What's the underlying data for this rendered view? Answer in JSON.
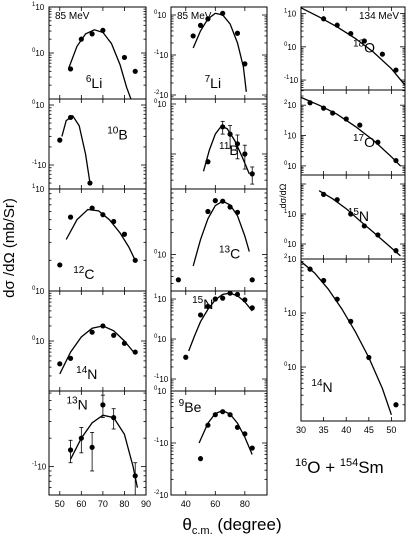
{
  "figure": {
    "ylabel_main": "dσ /dΩ  (mb/Sr)",
    "ylabel_right": "dσ/dΩ",
    "xlabel": "θc.m. (degree)",
    "xlabel_base": "θ",
    "xlabel_sub": "c.m.",
    "xlabel_tail": " (degree)",
    "reaction": "16O + 154Sm",
    "reaction_parts": [
      "16",
      "O + ",
      "154",
      "Sm"
    ]
  },
  "chart_data": [
    {
      "type": "scatter",
      "panel": "6Li",
      "label_sup": "6",
      "label_el": "Li",
      "energy": "85 MeV",
      "col": 0,
      "row": 0,
      "xlim": [
        45,
        90
      ],
      "ylim_log10": [
        -1,
        1
      ],
      "ytick_labels": [
        "10¹",
        "10⁰"
      ],
      "ytick_values": [
        10,
        1
      ],
      "points": [
        {
          "x": 55,
          "y": 0.45
        },
        {
          "x": 60,
          "y": 2.0
        },
        {
          "x": 65,
          "y": 2.6
        },
        {
          "x": 70,
          "y": 3.1
        },
        {
          "x": 80,
          "y": 0.8
        },
        {
          "x": 85,
          "y": 0.4
        }
      ],
      "curve": [
        {
          "x": 54,
          "y": 0.45
        },
        {
          "x": 58,
          "y": 1.4
        },
        {
          "x": 62,
          "y": 2.6
        },
        {
          "x": 66,
          "y": 3.2
        },
        {
          "x": 70,
          "y": 2.8
        },
        {
          "x": 74,
          "y": 1.6
        },
        {
          "x": 78,
          "y": 0.55
        },
        {
          "x": 81,
          "y": 0.18
        },
        {
          "x": 83,
          "y": 0.1
        }
      ]
    },
    {
      "type": "scatter",
      "panel": "10B",
      "label_sup": "10",
      "label_el": "B",
      "energy": "",
      "col": 0,
      "row": 1,
      "xlim": [
        45,
        90
      ],
      "ylim_log10": [
        -1.4,
        0.1
      ],
      "ytick_labels": [
        "10⁰",
        "10⁻¹"
      ],
      "ytick_values": [
        1,
        0.1
      ],
      "points": [
        {
          "x": 50,
          "y": 0.26
        },
        {
          "x": 55,
          "y": 0.62
        },
        {
          "x": 64,
          "y": 0.05
        }
      ],
      "curve": [
        {
          "x": 51,
          "y": 0.3
        },
        {
          "x": 53,
          "y": 0.55
        },
        {
          "x": 56,
          "y": 0.66
        },
        {
          "x": 59,
          "y": 0.45
        },
        {
          "x": 62,
          "y": 0.15
        },
        {
          "x": 64,
          "y": 0.05
        }
      ]
    },
    {
      "type": "scatter",
      "panel": "12C",
      "label_sup": "12",
      "label_el": "C",
      "energy": "",
      "col": 0,
      "row": 2,
      "xlim": [
        45,
        90
      ],
      "ylim_log10": [
        0,
        1
      ],
      "ytick_labels": [
        "10¹",
        "10⁰"
      ],
      "ytick_values": [
        10,
        1
      ],
      "points": [
        {
          "x": 50,
          "y": 1.8
        },
        {
          "x": 55,
          "y": 5.3
        },
        {
          "x": 65,
          "y": 6.5
        },
        {
          "x": 70,
          "y": 5.6
        },
        {
          "x": 75,
          "y": 4.8
        },
        {
          "x": 80,
          "y": 3.6
        },
        {
          "x": 85,
          "y": 2.0
        }
      ],
      "curve": [
        {
          "x": 53,
          "y": 3.2
        },
        {
          "x": 58,
          "y": 5.0
        },
        {
          "x": 63,
          "y": 6.3
        },
        {
          "x": 68,
          "y": 6.1
        },
        {
          "x": 73,
          "y": 5.0
        },
        {
          "x": 78,
          "y": 3.7
        },
        {
          "x": 82,
          "y": 2.7
        },
        {
          "x": 85,
          "y": 2.0
        }
      ]
    },
    {
      "type": "scatter",
      "panel": "14N",
      "label_sup": "14",
      "label_el": "N",
      "energy": "",
      "col": 0,
      "row": 3,
      "xlim": [
        45,
        90
      ],
      "ylim_log10": [
        -1,
        1
      ],
      "ytick_labels": [
        "10⁰"
      ],
      "ytick_values": [
        1
      ],
      "points": [
        {
          "x": 50,
          "y": 0.35
        },
        {
          "x": 55,
          "y": 0.45
        },
        {
          "x": 65,
          "y": 1.5
        },
        {
          "x": 70,
          "y": 2.0
        },
        {
          "x": 75,
          "y": 1.3
        },
        {
          "x": 80,
          "y": 0.9
        },
        {
          "x": 85,
          "y": 0.6
        }
      ],
      "curve": [
        {
          "x": 50,
          "y": 0.22
        },
        {
          "x": 55,
          "y": 0.6
        },
        {
          "x": 60,
          "y": 1.2
        },
        {
          "x": 65,
          "y": 1.8
        },
        {
          "x": 70,
          "y": 2.0
        },
        {
          "x": 75,
          "y": 1.6
        },
        {
          "x": 80,
          "y": 1.0
        },
        {
          "x": 85,
          "y": 0.55
        }
      ]
    },
    {
      "type": "scatter",
      "panel": "13N",
      "label_sup": "13",
      "label_el": "N",
      "energy": "",
      "col": 0,
      "row": 4,
      "xlim": [
        45,
        90
      ],
      "ylim_log10": [
        -1.3,
        -0.2
      ],
      "ytick_labels": [
        "10⁻¹"
      ],
      "ytick_values": [
        0.1
      ],
      "points": [
        {
          "x": 55,
          "y": 0.15,
          "err": 0.04
        },
        {
          "x": 60,
          "y": 0.2,
          "err": 0.06
        },
        {
          "x": 65,
          "y": 0.16,
          "err": 0.07
        },
        {
          "x": 70,
          "y": 0.45,
          "err": 0.12
        },
        {
          "x": 75,
          "y": 0.33,
          "err": 0.08
        },
        {
          "x": 85,
          "y": 0.08,
          "err": 0.03
        }
      ],
      "curve": [
        {
          "x": 55,
          "y": 0.12
        },
        {
          "x": 60,
          "y": 0.2
        },
        {
          "x": 65,
          "y": 0.29
        },
        {
          "x": 70,
          "y": 0.35
        },
        {
          "x": 75,
          "y": 0.33
        },
        {
          "x": 80,
          "y": 0.22
        },
        {
          "x": 84,
          "y": 0.1
        },
        {
          "x": 86,
          "y": 0.06
        }
      ]
    },
    {
      "type": "scatter",
      "panel": "7Li",
      "label_sup": "7",
      "label_el": "Li",
      "energy": "85 MeV",
      "col": 1,
      "row": 0,
      "xlim": [
        30,
        95
      ],
      "ylim_log10": [
        -2.1,
        0.2
      ],
      "ytick_labels": [
        "10⁰",
        "10⁻¹",
        "10⁻²"
      ],
      "ytick_values": [
        1,
        0.1,
        0.01
      ],
      "points": [
        {
          "x": 45,
          "y": 0.3
        },
        {
          "x": 50,
          "y": 0.55
        },
        {
          "x": 55,
          "y": 0.8
        },
        {
          "x": 65,
          "y": 1.1
        },
        {
          "x": 75,
          "y": 0.35
        },
        {
          "x": 80,
          "y": 0.06
        }
      ],
      "curve": [
        {
          "x": 45,
          "y": 0.15
        },
        {
          "x": 50,
          "y": 0.4
        },
        {
          "x": 55,
          "y": 0.8
        },
        {
          "x": 60,
          "y": 1.1
        },
        {
          "x": 65,
          "y": 1.0
        },
        {
          "x": 70,
          "y": 0.6
        },
        {
          "x": 75,
          "y": 0.2
        },
        {
          "x": 79,
          "y": 0.05
        },
        {
          "x": 81,
          "y": 0.012
        }
      ]
    },
    {
      "type": "scatter",
      "panel": "11B",
      "label_sup": "11",
      "label_el": "B",
      "energy": "",
      "col": 1,
      "row": 1,
      "xlim": [
        30,
        95
      ],
      "ylim_log10": [
        -1.7,
        0.1
      ],
      "ytick_labels": [
        "10⁰"
      ],
      "ytick_values": [
        1
      ],
      "points": [
        {
          "x": 55,
          "y": 0.07
        },
        {
          "x": 65,
          "y": 0.35,
          "err": 0.1
        },
        {
          "x": 70,
          "y": 0.25,
          "err": 0.12
        },
        {
          "x": 75,
          "y": 0.16,
          "err": 0.08
        },
        {
          "x": 80,
          "y": 0.1,
          "err": 0.05
        },
        {
          "x": 85,
          "y": 0.04,
          "err": 0.015
        }
      ],
      "curve": [
        {
          "x": 52,
          "y": 0.045
        },
        {
          "x": 56,
          "y": 0.12
        },
        {
          "x": 60,
          "y": 0.25
        },
        {
          "x": 64,
          "y": 0.36
        },
        {
          "x": 68,
          "y": 0.32
        },
        {
          "x": 73,
          "y": 0.19
        },
        {
          "x": 78,
          "y": 0.09
        },
        {
          "x": 83,
          "y": 0.04
        }
      ]
    },
    {
      "type": "scatter",
      "panel": "13C",
      "label_sup": "13",
      "label_el": "C",
      "energy": "",
      "col": 1,
      "row": 2,
      "xlim": [
        30,
        95
      ],
      "ylim_log10": [
        -0.5,
        0.9
      ],
      "ytick_labels": [
        "10⁰"
      ],
      "ytick_values": [
        1
      ],
      "points": [
        {
          "x": 35,
          "y": 0.45
        },
        {
          "x": 55,
          "y": 3.9
        },
        {
          "x": 60,
          "y": 5.5
        },
        {
          "x": 65,
          "y": 5.4
        },
        {
          "x": 70,
          "y": 4.5
        },
        {
          "x": 75,
          "y": 3.8
        },
        {
          "x": 85,
          "y": 0.45
        }
      ],
      "curve": [
        {
          "x": 45,
          "y": 0.7
        },
        {
          "x": 50,
          "y": 1.6
        },
        {
          "x": 55,
          "y": 3.1
        },
        {
          "x": 60,
          "y": 4.7
        },
        {
          "x": 65,
          "y": 5.4
        },
        {
          "x": 70,
          "y": 4.8
        },
        {
          "x": 75,
          "y": 3.4
        },
        {
          "x": 80,
          "y": 1.8
        },
        {
          "x": 83,
          "y": 1.1
        }
      ]
    },
    {
      "type": "scatter",
      "panel": "15N",
      "label_sup": "15",
      "label_el": "N",
      "energy": "",
      "col": 1,
      "row": 3,
      "xlim": [
        30,
        95
      ],
      "ylim_log10": [
        -1.3,
        1.2
      ],
      "ytick_labels": [
        "10¹",
        "10⁰",
        "10⁻¹"
      ],
      "ytick_values": [
        10,
        1,
        0.1
      ],
      "points": [
        {
          "x": 40,
          "y": 0.35
        },
        {
          "x": 50,
          "y": 4.0
        },
        {
          "x": 55,
          "y": 6.5
        },
        {
          "x": 60,
          "y": 10.0
        },
        {
          "x": 65,
          "y": 10.5
        },
        {
          "x": 70,
          "y": 14.0
        },
        {
          "x": 75,
          "y": 13.0
        },
        {
          "x": 80,
          "y": 9.5
        },
        {
          "x": 85,
          "y": 6.0
        }
      ],
      "curve": [
        {
          "x": 42,
          "y": 0.5
        },
        {
          "x": 46,
          "y": 1.2
        },
        {
          "x": 50,
          "y": 2.7
        },
        {
          "x": 55,
          "y": 5.5
        },
        {
          "x": 60,
          "y": 9.5
        },
        {
          "x": 65,
          "y": 13.0
        },
        {
          "x": 70,
          "y": 14.0
        },
        {
          "x": 75,
          "y": 12.0
        },
        {
          "x": 80,
          "y": 8.5
        },
        {
          "x": 85,
          "y": 5.0
        }
      ]
    },
    {
      "type": "scatter",
      "panel": "9Be",
      "label_sup": "9",
      "label_el": "Be",
      "energy": "",
      "col": 1,
      "row": 4,
      "xlim": [
        30,
        95
      ],
      "ylim_log10": [
        -2,
        0
      ],
      "ytick_labels": [
        "10⁰",
        "10⁻¹",
        "10⁻²"
      ],
      "ytick_values": [
        1,
        0.1,
        0.01
      ],
      "points": [
        {
          "x": 50,
          "y": 0.05
        },
        {
          "x": 55,
          "y": 0.22
        },
        {
          "x": 60,
          "y": 0.35
        },
        {
          "x": 65,
          "y": 0.4
        },
        {
          "x": 70,
          "y": 0.35
        },
        {
          "x": 75,
          "y": 0.2
        },
        {
          "x": 80,
          "y": 0.15
        },
        {
          "x": 85,
          "y": 0.08
        }
      ],
      "curve": [
        {
          "x": 49,
          "y": 0.1
        },
        {
          "x": 55,
          "y": 0.24
        },
        {
          "x": 60,
          "y": 0.37
        },
        {
          "x": 65,
          "y": 0.42
        },
        {
          "x": 70,
          "y": 0.36
        },
        {
          "x": 75,
          "y": 0.24
        },
        {
          "x": 80,
          "y": 0.13
        },
        {
          "x": 85,
          "y": 0.06
        }
      ]
    },
    {
      "type": "scatter",
      "panel": "18O",
      "label_sup": "18",
      "label_el": "O",
      "energy": "134 MeV",
      "col": 2,
      "row": 0,
      "xlim": [
        30,
        53
      ],
      "ylim_log10": [
        -1.3,
        1.2
      ],
      "ytick_labels": [
        "10¹",
        "10⁰",
        "10⁻¹"
      ],
      "ytick_values": [
        10,
        1,
        0.1
      ],
      "points": [
        {
          "x": 35,
          "y": 7.0
        },
        {
          "x": 38,
          "y": 4.5
        },
        {
          "x": 41,
          "y": 2.5
        },
        {
          "x": 44,
          "y": 1.5
        },
        {
          "x": 48,
          "y": 0.6
        },
        {
          "x": 51,
          "y": 0.2
        }
      ],
      "curve": [
        {
          "x": 30,
          "y": 15.0
        },
        {
          "x": 34,
          "y": 8.0
        },
        {
          "x": 38,
          "y": 4.0
        },
        {
          "x": 42,
          "y": 1.8
        },
        {
          "x": 46,
          "y": 0.7
        },
        {
          "x": 50,
          "y": 0.22
        },
        {
          "x": 53,
          "y": 0.07
        }
      ]
    },
    {
      "type": "scatter",
      "panel": "17O",
      "label_sup": "17",
      "label_el": "O",
      "energy": "",
      "col": 2,
      "row": 1,
      "xlim": [
        30,
        53
      ],
      "ylim_log10": [
        -0.3,
        2.5
      ],
      "ytick_labels": [
        "10²",
        "10¹",
        "10⁰"
      ],
      "ytick_values": [
        100,
        10,
        1
      ],
      "points": [
        {
          "x": 32,
          "y": 120
        },
        {
          "x": 35,
          "y": 80
        },
        {
          "x": 37,
          "y": 55
        },
        {
          "x": 40,
          "y": 35
        },
        {
          "x": 43,
          "y": 22
        },
        {
          "x": 47,
          "y": 6
        },
        {
          "x": 51,
          "y": 1.5
        }
      ],
      "curve": [
        {
          "x": 30,
          "y": 180
        },
        {
          "x": 34,
          "y": 100
        },
        {
          "x": 38,
          "y": 50
        },
        {
          "x": 42,
          "y": 20
        },
        {
          "x": 46,
          "y": 7
        },
        {
          "x": 50,
          "y": 2
        },
        {
          "x": 52,
          "y": 1.0
        }
      ]
    },
    {
      "type": "scatter",
      "panel": "15N",
      "label_sup": "15",
      "label_el": "N",
      "energy": "",
      "col": 2,
      "row": 2,
      "xlim": [
        30,
        53
      ],
      "ylim_log10": [
        -0.5,
        2.3
      ],
      "ytick_labels": [
        "10¹",
        "10⁰"
      ],
      "ytick_values": [
        10,
        1
      ],
      "points": [
        {
          "x": 35,
          "y": 45
        },
        {
          "x": 38,
          "y": 30
        },
        {
          "x": 41,
          "y": 10
        },
        {
          "x": 44,
          "y": 4
        },
        {
          "x": 47,
          "y": 2
        },
        {
          "x": 51,
          "y": 0.6
        }
      ],
      "curve": [
        {
          "x": 34,
          "y": 60
        },
        {
          "x": 37,
          "y": 32
        },
        {
          "x": 40,
          "y": 15
        },
        {
          "x": 43,
          "y": 6
        },
        {
          "x": 46,
          "y": 2.5
        },
        {
          "x": 49,
          "y": 1.0
        },
        {
          "x": 52,
          "y": 0.4
        }
      ]
    },
    {
      "type": "scatter",
      "panel": "14N",
      "label_sup": "14",
      "label_el": "N",
      "energy": "",
      "col": 2,
      "row": 3,
      "xlim": [
        30,
        53
      ],
      "ylim_log10": [
        -1,
        2
      ],
      "ytick_labels": [
        "10²",
        "10¹",
        "10⁰"
      ],
      "ytick_values": [
        100,
        10,
        1
      ],
      "points": [
        {
          "x": 32,
          "y": 65
        },
        {
          "x": 35,
          "y": 40
        },
        {
          "x": 38,
          "y": 18
        },
        {
          "x": 41,
          "y": 7
        },
        {
          "x": 45,
          "y": 1.5
        },
        {
          "x": 51,
          "y": 0.2
        }
      ],
      "curve": [
        {
          "x": 30,
          "y": 90
        },
        {
          "x": 33,
          "y": 55
        },
        {
          "x": 36,
          "y": 28
        },
        {
          "x": 39,
          "y": 12
        },
        {
          "x": 42,
          "y": 4.5
        },
        {
          "x": 45,
          "y": 1.5
        },
        {
          "x": 48,
          "y": 0.4
        },
        {
          "x": 50,
          "y": 0.13
        }
      ]
    }
  ],
  "x_ticks": {
    "left_middle": {
      "values": [
        50,
        60,
        70,
        80,
        90
      ],
      "labels": [
        "50",
        "60",
        "70",
        "80",
        "90"
      ]
    },
    "middle_col": {
      "values": [
        40,
        60,
        80
      ],
      "labels": [
        "40",
        "60",
        "80"
      ]
    },
    "right_col": {
      "values": [
        30,
        35,
        40,
        45,
        50
      ],
      "labels": [
        "30",
        "35",
        "40",
        "45",
        "50"
      ]
    }
  }
}
